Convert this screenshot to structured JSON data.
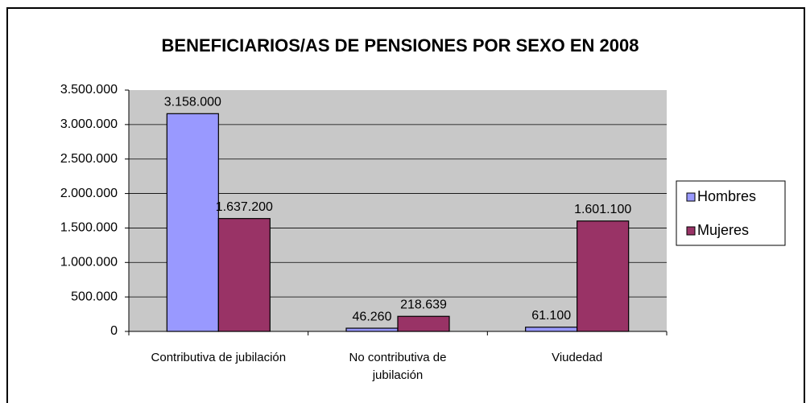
{
  "chart_data": {
    "type": "bar",
    "title": "BENEFICIARIOS/AS DE PENSIONES POR SEXO EN 2008",
    "categories": [
      "Contributiva de jubilación",
      "No contributiva de jubilación",
      "Viudedad"
    ],
    "series": [
      {
        "name": "Hombres",
        "color": "#9999ff",
        "values": [
          3158000,
          46260,
          61100
        ],
        "value_labels": [
          "3.158.000",
          "46.260",
          "61.100"
        ]
      },
      {
        "name": "Mujeres",
        "color": "#993366",
        "values": [
          1637200,
          218639,
          1601100
        ],
        "value_labels": [
          "1.637.200",
          "218.639",
          "1.601.100"
        ]
      }
    ],
    "ylim": [
      0,
      3500000
    ],
    "yticks": [
      0,
      {
        "value": 500000,
        "label": "500.000"
      },
      {
        "value": 1000000,
        "label": "1.000.000"
      },
      {
        "value": 1500000,
        "label": "1.500.000"
      },
      {
        "value": 2000000,
        "label": "2.000.000"
      },
      {
        "value": 2500000,
        "label": "2.500.000"
      },
      {
        "value": 3000000,
        "label": "3.000.000"
      },
      {
        "value": 3500000,
        "label": "3.500.000"
      }
    ],
    "grid": true,
    "legend": "right",
    "plot_background": "#c8c8c8"
  }
}
